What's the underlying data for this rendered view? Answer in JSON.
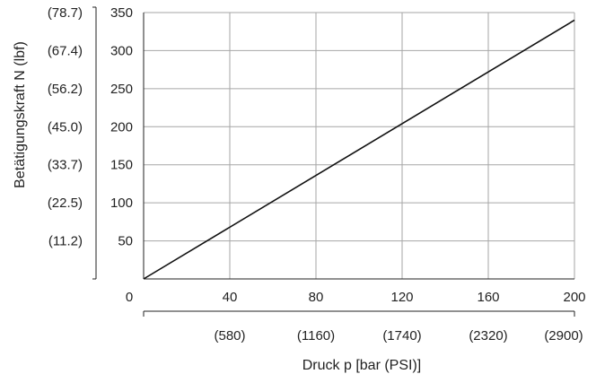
{
  "chart_data": {
    "type": "line",
    "title": "",
    "xlabel": "Druck p [bar (PSI)]",
    "ylabel": "Betätigungskraft N (lbf)",
    "xlim": [
      0,
      200
    ],
    "ylim": [
      0,
      350
    ],
    "grid": true,
    "x_ticks_primary": [
      "0",
      "40",
      "80",
      "120",
      "160",
      "200"
    ],
    "x_ticks_primary_values": [
      0,
      40,
      80,
      120,
      160,
      200
    ],
    "x_ticks_secondary": [
      "(580)",
      "(1160)",
      "(1740)",
      "(2320)",
      "(2900)"
    ],
    "x_ticks_secondary_values": [
      40,
      80,
      120,
      160,
      200
    ],
    "y_ticks_primary": [
      "50",
      "100",
      "150",
      "200",
      "250",
      "300",
      "350"
    ],
    "y_ticks_primary_values": [
      50,
      100,
      150,
      200,
      250,
      300,
      350
    ],
    "y_ticks_secondary": [
      "(11.2)",
      "(22.5)",
      "(33.7)",
      "(45.0)",
      "(56.2)",
      "(67.4)",
      "(78.7)"
    ],
    "y_ticks_secondary_values": [
      50,
      100,
      150,
      200,
      250,
      300,
      350
    ],
    "series": [
      {
        "x": [
          0,
          200
        ],
        "y": [
          0,
          340
        ]
      }
    ],
    "colors": {
      "line": "#111111",
      "grid": "#a6a6a6",
      "axis": "#222222"
    }
  }
}
